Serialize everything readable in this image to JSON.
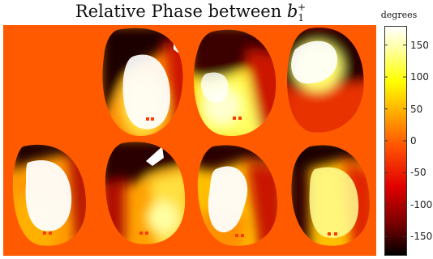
{
  "title": {
    "prefix": "Relative Phase between ",
    "symbol": "b",
    "sub": "1",
    "sup": "+"
  },
  "colorbar": {
    "unit_label": "degrees",
    "range": [
      -180,
      180
    ],
    "ticks": [
      150,
      100,
      50,
      0,
      -50,
      -100,
      -150
    ],
    "tick_labels": [
      "150",
      "100",
      "50",
      "0",
      "-50",
      "-100",
      "-150"
    ],
    "colormap": [
      "#000000",
      "#7a0000",
      "#e10000",
      "#ff5500",
      "#ffaa00",
      "#ffff00",
      "#ffffa0",
      "#ffffff"
    ]
  },
  "panels": [
    {
      "row": 0,
      "col": 0,
      "shape": "empty"
    },
    {
      "row": 0,
      "col": 1,
      "shape": "bright-core-dark-rim"
    },
    {
      "row": 0,
      "col": 2,
      "shape": "bright-wedge-dark-top"
    },
    {
      "row": 0,
      "col": 3,
      "shape": "bright-cap-dark-band"
    },
    {
      "row": 1,
      "col": 0,
      "shape": "bright-core-dark-top"
    },
    {
      "row": 1,
      "col": 1,
      "shape": "dark-sweep-bright-bottom"
    },
    {
      "row": 1,
      "col": 2,
      "shape": "bright-core-dark-top"
    },
    {
      "row": 1,
      "col": 3,
      "shape": "bright-core-dark-left"
    }
  ],
  "colors": {
    "background_phase": "#ff5a00",
    "white_region": "#ffffff"
  }
}
